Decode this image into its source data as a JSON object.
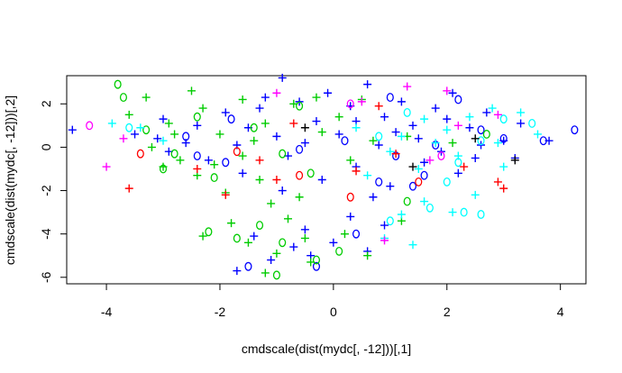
{
  "chart_data": {
    "type": "scatter",
    "title": "",
    "xlabel": "cmdscale(dist(mydc[, -12]))[,1]",
    "ylabel": "cmdscale(dist(mydc[, -12]))[,2]",
    "xlim": [
      -4.7,
      4.45
    ],
    "ylim": [
      -6.3,
      3.3
    ],
    "x_ticks": [
      -4,
      -2,
      0,
      2,
      4
    ],
    "y_ticks": [
      -6,
      -4,
      -2,
      0,
      2
    ],
    "x_tick_labels": [
      "-4",
      "-2",
      "0",
      "2",
      "4"
    ],
    "y_tick_labels": [
      "-6",
      "-4",
      "-2",
      "0",
      "2"
    ],
    "grid": false,
    "legend": "none",
    "marker_symbols": [
      "+",
      "o"
    ],
    "colors": [
      "#0000ff",
      "#00cc00",
      "#00ffff",
      "#ff00ff",
      "#ff0000",
      "#000000"
    ],
    "series": [
      {
        "color": "#0000ff",
        "marker": "+",
        "points": [
          [
            -4.6,
            0.8
          ],
          [
            -3.1,
            0.4
          ],
          [
            -2.6,
            0.2
          ],
          [
            -1.9,
            1.6
          ],
          [
            -1.5,
            0.9
          ],
          [
            -1.2,
            2.3
          ],
          [
            -0.9,
            3.2
          ],
          [
            -0.6,
            2.1
          ],
          [
            -0.3,
            1.2
          ],
          [
            0.1,
            0.6
          ],
          [
            0.3,
            1.9
          ],
          [
            0.6,
            2.9
          ],
          [
            0.9,
            1.4
          ],
          [
            1.2,
            2.1
          ],
          [
            1.5,
            0.4
          ],
          [
            1.8,
            1.8
          ],
          [
            2.1,
            2.5
          ],
          [
            2.4,
            0.9
          ],
          [
            2.7,
            1.6
          ],
          [
            3.0,
            0.3
          ],
          [
            3.3,
            1.1
          ],
          [
            3.8,
            0.3
          ],
          [
            -2.2,
            -0.6
          ],
          [
            -1.6,
            -1.2
          ],
          [
            -0.8,
            -0.4
          ],
          [
            -0.2,
            -1.5
          ],
          [
            0.4,
            -0.9
          ],
          [
            1.0,
            -1.8
          ],
          [
            1.6,
            -0.7
          ],
          [
            2.2,
            -1.2
          ],
          [
            -1.4,
            -4.1
          ],
          [
            -1.1,
            -5.2
          ],
          [
            -0.7,
            -4.6
          ],
          [
            -0.4,
            -5.0
          ],
          [
            0.0,
            -4.4
          ],
          [
            0.3,
            -3.2
          ],
          [
            0.6,
            -4.8
          ],
          [
            0.9,
            -3.6
          ],
          [
            -1.7,
            -5.7
          ],
          [
            -0.5,
            -3.8
          ],
          [
            -3.5,
            0.6
          ],
          [
            -3.0,
            1.3
          ],
          [
            -2.4,
            1.0
          ],
          [
            -1.7,
            0.1
          ],
          [
            -1.0,
            0.5
          ],
          [
            -0.5,
            0.2
          ],
          [
            0.8,
            0.1
          ],
          [
            1.4,
            1.0
          ],
          [
            2.6,
            0.1
          ],
          [
            -2.9,
            -0.2
          ],
          [
            -0.1,
            2.5
          ],
          [
            0.4,
            1.2
          ],
          [
            1.1,
            0.7
          ],
          [
            2.0,
            1.3
          ],
          [
            -1.3,
            1.8
          ],
          [
            3.2,
            -0.5
          ],
          [
            0.7,
            -2.3
          ],
          [
            -0.9,
            -2.0
          ],
          [
            1.9,
            -0.2
          ],
          [
            2.5,
            -0.5
          ]
        ]
      },
      {
        "color": "#0000ff",
        "marker": "o",
        "points": [
          [
            4.25,
            0.8
          ],
          [
            3.7,
            0.3
          ],
          [
            3.0,
            0.4
          ],
          [
            2.6,
            0.8
          ],
          [
            1.8,
            0.1
          ],
          [
            1.1,
            -0.4
          ],
          [
            0.2,
            0.3
          ],
          [
            -0.6,
            -0.1
          ],
          [
            -1.9,
            -0.7
          ],
          [
            -2.6,
            0.5
          ],
          [
            1.4,
            -1.8
          ],
          [
            0.8,
            -1.6
          ],
          [
            -0.3,
            -5.5
          ],
          [
            -1.5,
            -5.5
          ],
          [
            0.4,
            -4.0
          ],
          [
            1.0,
            2.3
          ],
          [
            -1.8,
            1.3
          ],
          [
            -2.4,
            -0.4
          ],
          [
            2.2,
            2.2
          ],
          [
            1.6,
            -1.3
          ]
        ]
      },
      {
        "color": "#00cc00",
        "marker": "+",
        "points": [
          [
            -3.3,
            2.3
          ],
          [
            -2.9,
            1.1
          ],
          [
            -3.2,
            0.0
          ],
          [
            -2.7,
            -0.6
          ],
          [
            -2.3,
            1.8
          ],
          [
            -2.0,
            0.6
          ],
          [
            -1.6,
            -0.4
          ],
          [
            -1.2,
            1.1
          ],
          [
            -0.7,
            2.0
          ],
          [
            -0.2,
            0.7
          ],
          [
            0.3,
            -0.6
          ],
          [
            0.7,
            0.3
          ],
          [
            -2.4,
            -1.3
          ],
          [
            -1.9,
            -2.1
          ],
          [
            -1.3,
            -1.5
          ],
          [
            -0.6,
            -2.3
          ],
          [
            -1.8,
            -3.5
          ],
          [
            -2.3,
            -4.1
          ],
          [
            -1.5,
            -4.4
          ],
          [
            -1.0,
            -4.9
          ],
          [
            -0.5,
            -4.2
          ],
          [
            0.2,
            -4.0
          ],
          [
            -1.2,
            -5.8
          ],
          [
            -0.4,
            -5.3
          ],
          [
            0.6,
            -5.0
          ],
          [
            -2.8,
            0.6
          ],
          [
            -3.6,
            1.5
          ],
          [
            -1.4,
            0.3
          ],
          [
            0.1,
            1.4
          ],
          [
            1.3,
            0.5
          ],
          [
            -2.1,
            -0.8
          ],
          [
            -3.0,
            -0.9
          ],
          [
            -1.1,
            -2.6
          ],
          [
            -0.8,
            -3.3
          ],
          [
            1.2,
            -3.4
          ],
          [
            -2.5,
            2.6
          ],
          [
            -1.6,
            2.2
          ],
          [
            -0.3,
            2.3
          ],
          [
            2.1,
            0.2
          ],
          [
            0.5,
            2.2
          ]
        ]
      },
      {
        "color": "#00cc00",
        "marker": "o",
        "points": [
          [
            -3.8,
            2.9
          ],
          [
            -3.7,
            2.3
          ],
          [
            -3.3,
            0.8
          ],
          [
            -2.8,
            -0.3
          ],
          [
            -3.0,
            -1.0
          ],
          [
            -2.4,
            1.4
          ],
          [
            -1.4,
            0.9
          ],
          [
            -0.9,
            -0.3
          ],
          [
            -0.6,
            1.9
          ],
          [
            -0.4,
            -1.2
          ],
          [
            -2.2,
            -3.9
          ],
          [
            -1.7,
            -4.2
          ],
          [
            -1.3,
            -3.6
          ],
          [
            -0.9,
            -4.4
          ],
          [
            -0.3,
            -5.2
          ],
          [
            -1.0,
            -5.9
          ],
          [
            0.1,
            -4.8
          ],
          [
            -2.1,
            -1.4
          ],
          [
            1.3,
            -2.5
          ],
          [
            2.7,
            0.6
          ]
        ]
      },
      {
        "color": "#00ffff",
        "marker": "+",
        "points": [
          [
            -3.9,
            1.1
          ],
          [
            -3.4,
            0.9
          ],
          [
            -3.0,
            0.3
          ],
          [
            1.2,
            0.5
          ],
          [
            1.6,
            1.3
          ],
          [
            2.0,
            0.8
          ],
          [
            2.4,
            1.4
          ],
          [
            2.8,
            1.8
          ],
          [
            3.3,
            1.6
          ],
          [
            3.6,
            0.6
          ],
          [
            2.2,
            -0.4
          ],
          [
            1.5,
            -1.0
          ],
          [
            1.0,
            -0.2
          ],
          [
            0.6,
            -1.3
          ],
          [
            1.2,
            -3.1
          ],
          [
            1.6,
            -2.5
          ],
          [
            0.9,
            -4.2
          ],
          [
            1.4,
            -4.5
          ],
          [
            2.5,
            -2.2
          ],
          [
            3.0,
            -0.9
          ],
          [
            2.1,
            -3.0
          ],
          [
            1.8,
            0.2
          ],
          [
            0.4,
            0.9
          ],
          [
            2.9,
            0.2
          ]
        ]
      },
      {
        "color": "#00ffff",
        "marker": "o",
        "points": [
          [
            3.5,
            1.1
          ],
          [
            3.0,
            1.3
          ],
          [
            2.6,
            0.3
          ],
          [
            2.2,
            -0.7
          ],
          [
            2.3,
            -3.0
          ],
          [
            2.6,
            -3.1
          ],
          [
            1.0,
            -3.4
          ],
          [
            1.7,
            -2.8
          ],
          [
            1.3,
            1.6
          ],
          [
            0.8,
            0.5
          ],
          [
            2.0,
            -1.6
          ],
          [
            -3.6,
            0.9
          ]
        ]
      },
      {
        "color": "#ff00ff",
        "marker": "+",
        "points": [
          [
            -4.0,
            -0.9
          ],
          [
            -3.7,
            0.4
          ],
          [
            1.3,
            2.8
          ],
          [
            2.0,
            2.6
          ],
          [
            2.9,
            1.5
          ],
          [
            0.9,
            -4.3
          ],
          [
            2.2,
            1.0
          ],
          [
            -1.0,
            2.5
          ],
          [
            0.5,
            2.1
          ],
          [
            1.7,
            -0.6
          ]
        ]
      },
      {
        "color": "#ff00ff",
        "marker": "o",
        "points": [
          [
            -4.3,
            1.0
          ],
          [
            1.9,
            -0.4
          ],
          [
            0.3,
            2.0
          ]
        ]
      },
      {
        "color": "#ff0000",
        "marker": "+",
        "points": [
          [
            -3.6,
            -1.9
          ],
          [
            -2.4,
            -1.0
          ],
          [
            -1.3,
            -0.6
          ],
          [
            -0.7,
            1.1
          ],
          [
            0.4,
            -1.1
          ],
          [
            1.1,
            -0.3
          ],
          [
            2.9,
            -1.6
          ],
          [
            3.0,
            -1.9
          ],
          [
            -1.9,
            -2.2
          ],
          [
            -1.0,
            -1.5
          ],
          [
            0.8,
            1.9
          ],
          [
            2.3,
            -0.9
          ]
        ]
      },
      {
        "color": "#ff0000",
        "marker": "o",
        "points": [
          [
            0.3,
            -2.3
          ],
          [
            -0.6,
            -1.3
          ],
          [
            -1.7,
            -0.2
          ],
          [
            1.5,
            -1.6
          ],
          [
            -3.4,
            -0.3
          ]
        ]
      },
      {
        "color": "#000000",
        "marker": "+",
        "points": [
          [
            3.2,
            -0.6
          ],
          [
            2.5,
            0.4
          ],
          [
            1.4,
            -0.9
          ],
          [
            -0.5,
            0.9
          ]
        ]
      }
    ]
  }
}
